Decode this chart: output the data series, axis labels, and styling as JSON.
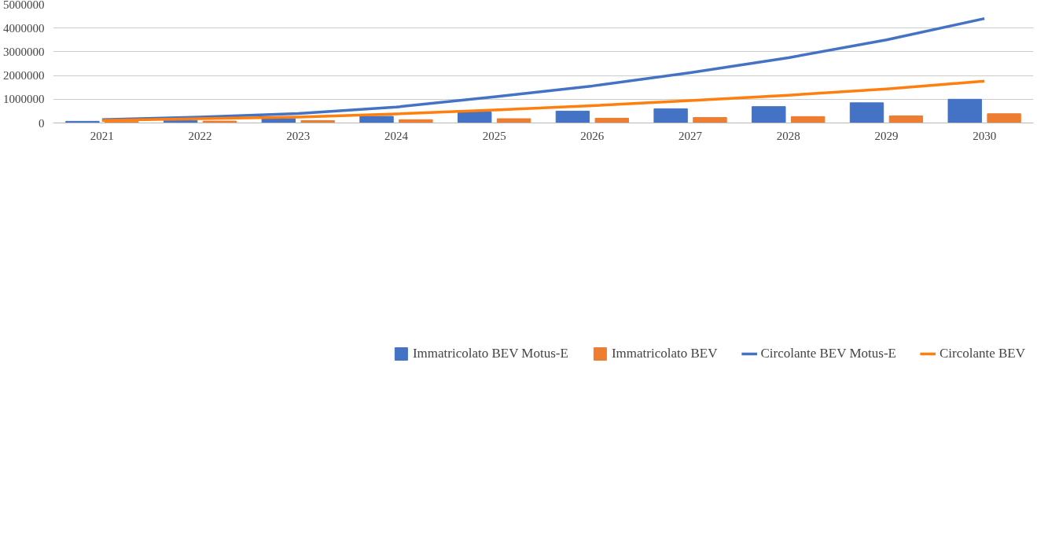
{
  "chart_data": {
    "type": "bar",
    "categories": [
      "2021",
      "2022",
      "2023",
      "2024",
      "2025",
      "2026",
      "2027",
      "2028",
      "2029",
      "2030"
    ],
    "series": [
      {
        "name": "Immatricolato BEV Motus-E",
        "color": "#4472c4",
        "values": [
          70000,
          110000,
          180000,
          280000,
          460000,
          500000,
          600000,
          690000,
          850000,
          1000000
        ]
      },
      {
        "name": "Immatricolato BEV",
        "color": "#ed7d31",
        "values": [
          60000,
          80000,
          100000,
          140000,
          180000,
          200000,
          230000,
          270000,
          300000,
          390000
        ]
      },
      {
        "name": "Circolante BEV Motus-E",
        "type": "line",
        "color": "#4472c4",
        "values": [
          140000,
          250000,
          400000,
          670000,
          1100000,
          1560000,
          2120000,
          2750000,
          3500000,
          4400000
        ]
      },
      {
        "name": "Circolante BEV",
        "type": "line",
        "color": "#ff7f0e",
        "values": [
          110000,
          180000,
          250000,
          380000,
          550000,
          730000,
          940000,
          1170000,
          1430000,
          1760000
        ]
      }
    ],
    "ylim": [
      0,
      5000000
    ],
    "yticks": [
      0,
      1000000,
      2000000,
      3000000,
      4000000,
      5000000
    ],
    "grid": "y",
    "legend": "bottom",
    "marker": "none",
    "line_style": "solid"
  }
}
